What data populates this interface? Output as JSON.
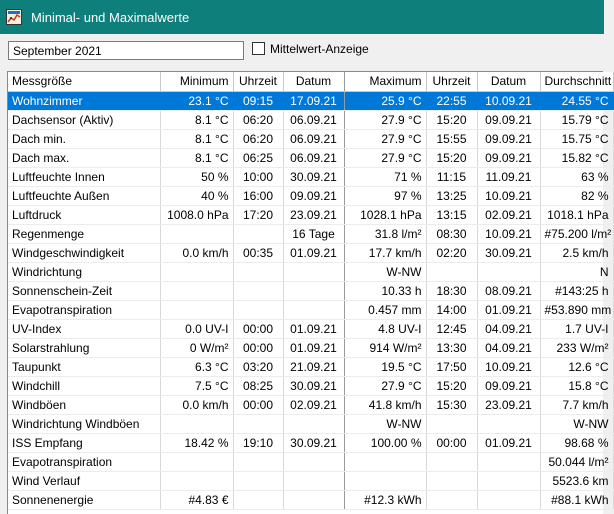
{
  "window": {
    "title": "Minimal- und Maximalwerte",
    "icon": "chart-app-icon"
  },
  "toolbar": {
    "month": "September 2021",
    "checkbox_label": "Mittelwert-Anzeige",
    "checkbox_checked": false
  },
  "columns": [
    "Messgröße",
    "Minimum",
    "Uhrzeit",
    "Datum",
    "Maximum",
    "Uhrzeit",
    "Datum",
    "Durchschnitt"
  ],
  "rows": [
    [
      "Wohnzimmer",
      "23.1 °C",
      "09:15",
      "17.09.21",
      "25.9 °C",
      "22:55",
      "10.09.21",
      "24.55 °C"
    ],
    [
      "Dachsensor (Aktiv)",
      "8.1 °C",
      "06:20",
      "06.09.21",
      "27.9 °C",
      "15:20",
      "09.09.21",
      "15.79 °C"
    ],
    [
      "Dach min.",
      "8.1 °C",
      "06:20",
      "06.09.21",
      "27.9 °C",
      "15:55",
      "09.09.21",
      "15.75 °C"
    ],
    [
      "Dach max.",
      "8.1 °C",
      "06:25",
      "06.09.21",
      "27.9 °C",
      "15:20",
      "09.09.21",
      "15.82 °C"
    ],
    [
      "Luftfeuchte Innen",
      "50 %",
      "10:00",
      "30.09.21",
      "71 %",
      "11:15",
      "11.09.21",
      "63 %"
    ],
    [
      "Luftfeuchte Außen",
      "40 %",
      "16:00",
      "09.09.21",
      "97 %",
      "13:25",
      "10.09.21",
      "82 %"
    ],
    [
      "Luftdruck",
      "1008.0 hPa",
      "17:20",
      "23.09.21",
      "1028.1 hPa",
      "13:15",
      "02.09.21",
      "1018.1 hPa"
    ],
    [
      "Regenmenge",
      "",
      "",
      "16 Tage",
      "31.8 l/m²",
      "08:30",
      "10.09.21",
      "#75.200 l/m²"
    ],
    [
      "Windgeschwindigkeit",
      "0.0 km/h",
      "00:35",
      "01.09.21",
      "17.7 km/h",
      "02:20",
      "30.09.21",
      "2.5 km/h"
    ],
    [
      "Windrichtung",
      "",
      "",
      "",
      "W-NW",
      "",
      "",
      "N"
    ],
    [
      "Sonnenschein-Zeit",
      "",
      "",
      "",
      "10.33 h",
      "18:30",
      "08.09.21",
      "#143:25 h"
    ],
    [
      "Evapotranspiration",
      "",
      "",
      "",
      "0.457 mm",
      "14:00",
      "01.09.21",
      "#53.890 mm"
    ],
    [
      "UV-Index",
      "0.0 UV-I",
      "00:00",
      "01.09.21",
      "4.8 UV-I",
      "12:45",
      "04.09.21",
      "1.7 UV-I"
    ],
    [
      "Solarstrahlung",
      "0 W/m²",
      "00:00",
      "01.09.21",
      "914 W/m²",
      "13:30",
      "04.09.21",
      "233 W/m²"
    ],
    [
      "Taupunkt",
      "6.3 °C",
      "03:20",
      "21.09.21",
      "19.5 °C",
      "17:50",
      "10.09.21",
      "12.6 °C"
    ],
    [
      "Windchill",
      "7.5 °C",
      "08:25",
      "30.09.21",
      "27.9 °C",
      "15:20",
      "09.09.21",
      "15.8 °C"
    ],
    [
      "Windböen",
      "0.0 km/h",
      "00:00",
      "02.09.21",
      "41.8 km/h",
      "15:30",
      "23.09.21",
      "7.7 km/h"
    ],
    [
      "Windrichtung Windböen",
      "",
      "",
      "",
      "W-NW",
      "",
      "",
      "W-NW"
    ],
    [
      "ISS Empfang",
      "18.42 %",
      "19:10",
      "30.09.21",
      "100.00 %",
      "00:00",
      "01.09.21",
      "98.68 %"
    ],
    [
      "Evapotranspiration",
      "",
      "",
      "",
      "",
      "",
      "",
      "50.044 l/m²"
    ],
    [
      "Wind Verlauf",
      "",
      "",
      "",
      "",
      "",
      "",
      "5523.6 km"
    ],
    [
      "Sonnenenergie",
      "#4.83 €",
      "",
      "",
      "#12.3 kWh",
      "",
      "",
      "#88.1 kWh"
    ]
  ],
  "selected_row": 0
}
